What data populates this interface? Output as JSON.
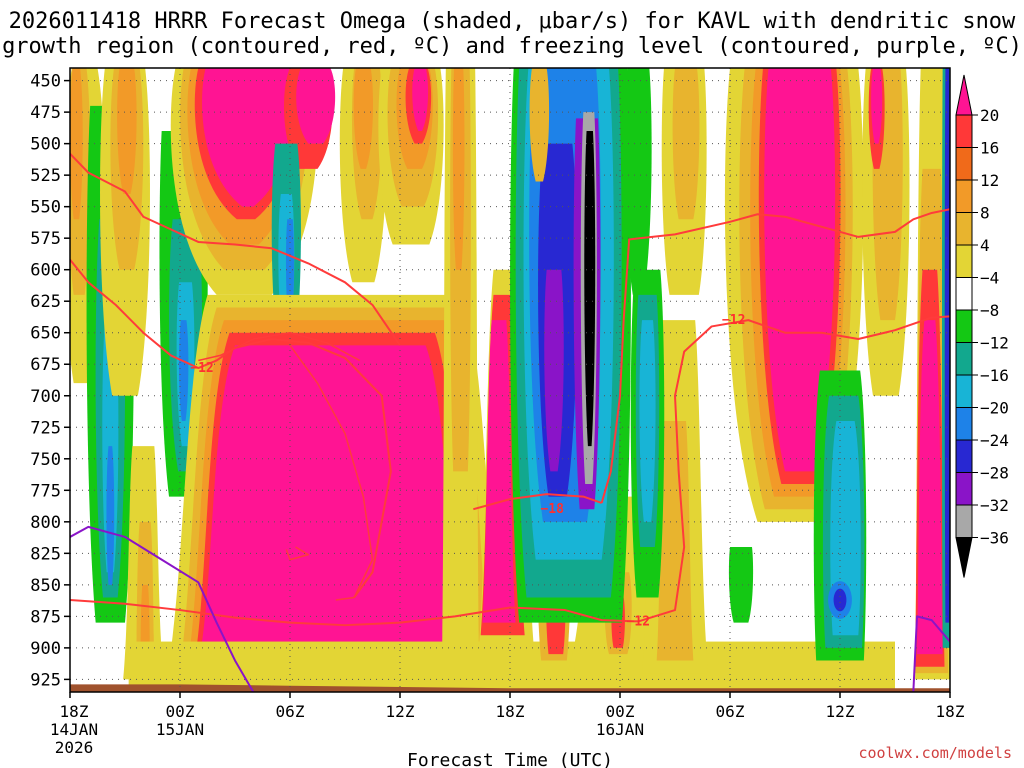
{
  "chart_data": {
    "type": "time-height-contour",
    "title_line1": "2026011418 HRRR Forecast Omega (shaded, μbar/s) for KAVL with dendritic snow",
    "title_line2": "growth region (contoured, red, ºC) and freezing level (contoured, purple, ºC)",
    "xlabel": "Forecast Time (UTC)",
    "credit": "coolwx.com/models",
    "x_range_hours": [
      0,
      48
    ],
    "y_range_hpa": [
      440,
      935
    ],
    "y_ticks": [
      450,
      475,
      500,
      525,
      550,
      575,
      600,
      625,
      650,
      675,
      700,
      725,
      750,
      775,
      800,
      825,
      850,
      875,
      900,
      925
    ],
    "x_ticks": [
      {
        "hour": 0,
        "lines": [
          "18Z",
          "14JAN",
          "2026"
        ]
      },
      {
        "hour": 6,
        "lines": [
          "00Z",
          "15JAN"
        ]
      },
      {
        "hour": 12,
        "lines": [
          "06Z"
        ]
      },
      {
        "hour": 18,
        "lines": [
          "12Z"
        ]
      },
      {
        "hour": 24,
        "lines": [
          "18Z"
        ]
      },
      {
        "hour": 30,
        "lines": [
          "00Z",
          "16JAN"
        ]
      },
      {
        "hour": 36,
        "lines": [
          "06Z"
        ]
      },
      {
        "hour": 42,
        "lines": [
          "12Z"
        ]
      },
      {
        "hour": 48,
        "lines": [
          "18Z"
        ]
      }
    ],
    "colorbar": {
      "labels": [
        "20",
        "16",
        "12",
        "8",
        "4",
        "−4",
        "−8",
        "−12",
        "−16",
        "−20",
        "−24",
        "−28",
        "−32",
        "−36"
      ],
      "colors": [
        "#ff1493",
        "#ff3838",
        "#f06a1a",
        "#f29a28",
        "#e8b42e",
        "#e3d535",
        "#ffffff",
        "#14c814",
        "#12a88e",
        "#18b4d6",
        "#1e82e8",
        "#2828d2",
        "#8a14c8",
        "#a8a8a8",
        "#000000"
      ]
    },
    "shading_levels": {
      "pink": "#ff1493",
      "red": "#ff3838",
      "orange": "#f06a1a",
      "lightorange": "#f29a28",
      "darkyellow": "#e8b42e",
      "yellow": "#e3d535",
      "green": "#14c814",
      "teal": "#12a88e",
      "cyan": "#18b4d6",
      "blue": "#1e82e8",
      "navy": "#2828d2",
      "purple": "#8a14c8",
      "gray": "#a8a8a8",
      "black": "#000000"
    },
    "contour_labels": [
      {
        "text": "−12",
        "hour": 7.2,
        "hpa": 678
      },
      {
        "text": "−18",
        "hour": 26.3,
        "hpa": 790
      },
      {
        "text": "−12",
        "hour": 31.0,
        "hpa": 879
      },
      {
        "text": "−12",
        "hour": 36.2,
        "hpa": 640
      }
    ],
    "terrain_color": "#a0522d",
    "surface_hpa_start": 929,
    "surface_hpa_end": 932
  }
}
